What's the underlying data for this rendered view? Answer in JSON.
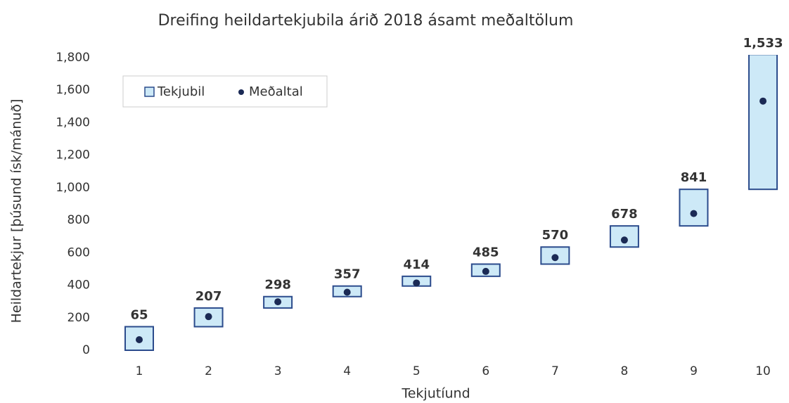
{
  "chart_data": {
    "type": "floating-bar",
    "title": "Dreifing heildartekjubila árið 2018 ásamt meðaltölum",
    "x_label": "Tekjutíund",
    "y_label": "Heildartekjur [þúsund ísk/mánuð]",
    "categories": [
      "1",
      "2",
      "3",
      "4",
      "5",
      "6",
      "7",
      "8",
      "9",
      "10"
    ],
    "series": [
      {
        "name": "Tekjubil",
        "color": "#cde9f7",
        "edge": "#2b4b8c",
        "low": [
          0,
          145,
          260,
          330,
          395,
          455,
          530,
          635,
          765,
          990
        ],
        "high": [
          145,
          260,
          330,
          395,
          455,
          530,
          635,
          765,
          990,
          1820
        ]
      },
      {
        "name": "Meðaltal",
        "color": "#1b2a55",
        "values": [
          65,
          207,
          298,
          357,
          414,
          485,
          570,
          678,
          841,
          1533
        ],
        "value_labels": [
          "65",
          "207",
          "298",
          "357",
          "414",
          "485",
          "570",
          "678",
          "841",
          "1,533"
        ]
      }
    ],
    "ylim": [
      0,
      1800
    ],
    "yticks": [
      0,
      200,
      400,
      600,
      800,
      {
        "value": 1000,
        "label": "1,000"
      },
      {
        "value": 1200,
        "label": "1,200"
      },
      {
        "value": 1400,
        "label": "1,400"
      },
      {
        "value": 1600,
        "label": "1,600"
      },
      {
        "value": 1800,
        "label": "1,800"
      }
    ],
    "grid": false,
    "legend": "top-left"
  }
}
